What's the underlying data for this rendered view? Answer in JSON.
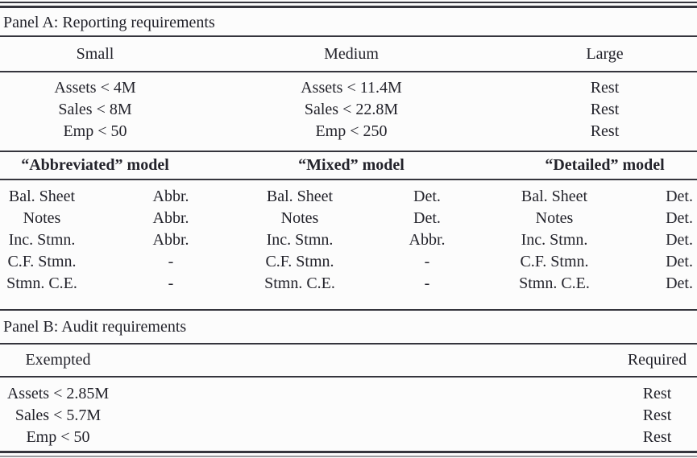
{
  "panel_a": {
    "title": "Panel A: Reporting requirements",
    "size_headers": [
      "Small",
      "Medium",
      "Large"
    ],
    "threshold_rows": [
      [
        "Assets < 4M",
        "Assets < 11.4M",
        "Rest"
      ],
      [
        "Sales < 8M",
        "Sales < 22.8M",
        "Rest"
      ],
      [
        "Emp < 50",
        "Emp < 250",
        "Rest"
      ]
    ],
    "model_headers": [
      "“Abbreviated” model",
      "“Mixed” model",
      "“Detailed” model"
    ],
    "model_rows": [
      [
        "Bal. Sheet",
        "Abbr.",
        "Bal. Sheet",
        "Det.",
        "Bal. Sheet",
        "Det."
      ],
      [
        "Notes",
        "Abbr.",
        "Notes",
        "Det.",
        "Notes",
        "Det."
      ],
      [
        "Inc. Stmn.",
        "Abbr.",
        "Inc. Stmn.",
        "Abbr.",
        "Inc. Stmn.",
        "Det."
      ],
      [
        "C.F. Stmn.",
        "-",
        "C.F. Stmn.",
        "-",
        "C.F. Stmn.",
        "Det."
      ],
      [
        "Stmn. C.E.",
        "-",
        "Stmn. C.E.",
        "-",
        "Stmn. C.E.",
        "Det."
      ]
    ]
  },
  "panel_b": {
    "title": "Panel B: Audit requirements",
    "column_headers": [
      "Exempted",
      "Required"
    ],
    "rows": [
      [
        "Assets < 2.85M",
        "Rest"
      ],
      [
        "Sales < 5.7M",
        "Rest"
      ],
      [
        "Emp < 50",
        "Rest"
      ]
    ]
  },
  "colors": {
    "text": "#23232b",
    "rule": "#35353d",
    "background": "#fcfcfc"
  }
}
